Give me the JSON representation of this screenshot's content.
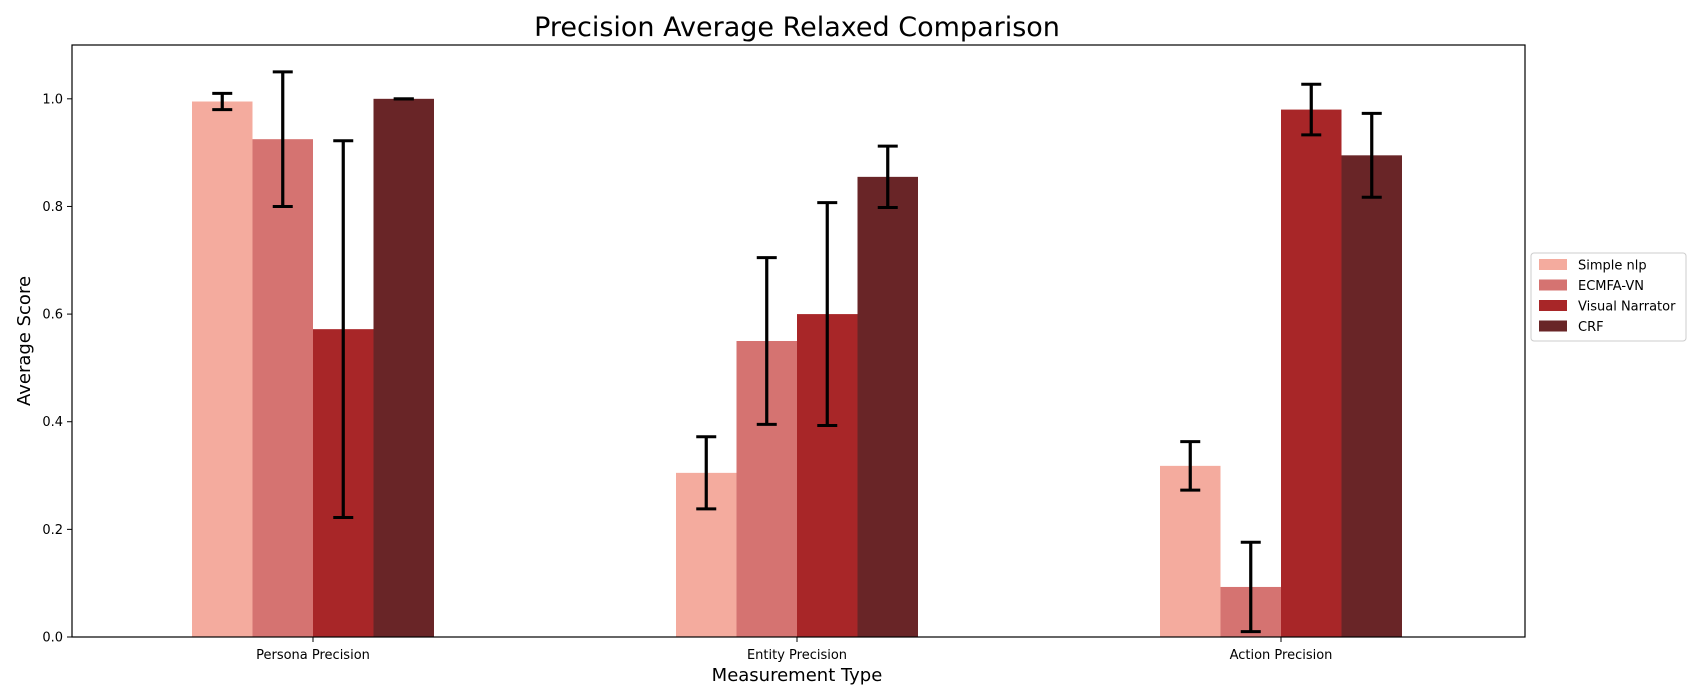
{
  "chart_data": {
    "type": "bar",
    "title": "Precision Average Relaxed Comparison",
    "xlabel": "Measurement Type",
    "ylabel": "Average Score",
    "categories": [
      "Persona Precision",
      "Entity Precision",
      "Action Precision"
    ],
    "ylim": [
      0,
      1.1
    ],
    "yticks": [
      "0.0",
      "0.2",
      "0.4",
      "0.6",
      "0.8",
      "1.0"
    ],
    "legend_position": "right",
    "grid": false,
    "series": [
      {
        "name": "Simple nlp",
        "color": "#f4ab9e",
        "values": [
          0.995,
          0.305,
          0.318
        ],
        "errors": [
          0.015,
          0.067,
          0.045
        ]
      },
      {
        "name": "ECMFA-VN",
        "color": "#d57371",
        "values": [
          0.925,
          0.55,
          0.093
        ],
        "errors": [
          0.125,
          0.155,
          0.083
        ]
      },
      {
        "name": "Visual Narrator",
        "color": "#a82628",
        "values": [
          0.572,
          0.6,
          0.98
        ],
        "errors": [
          0.35,
          0.207,
          0.047
        ]
      },
      {
        "name": "CRF",
        "color": "#692527",
        "values": [
          1.0,
          0.855,
          0.895
        ],
        "errors": [
          0.0,
          0.057,
          0.078
        ]
      }
    ]
  }
}
